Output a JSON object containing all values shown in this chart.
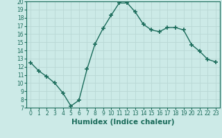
{
  "x": [
    0,
    1,
    2,
    3,
    4,
    5,
    6,
    7,
    8,
    9,
    10,
    11,
    12,
    13,
    14,
    15,
    16,
    17,
    18,
    19,
    20,
    21,
    22,
    23
  ],
  "y": [
    12.5,
    11.5,
    10.8,
    10.0,
    8.8,
    7.2,
    7.9,
    11.7,
    14.8,
    16.7,
    18.3,
    19.8,
    19.8,
    18.7,
    17.2,
    16.5,
    16.3,
    16.8,
    16.8,
    16.5,
    14.7,
    13.9,
    12.9,
    12.6
  ],
  "line_color": "#1a6b5a",
  "marker": "+",
  "marker_size": 4,
  "bg_color": "#cceae7",
  "grid_color": "#b8d8d5",
  "xlabel": "Humidex (Indice chaleur)",
  "xlim": [
    -0.5,
    23.5
  ],
  "ylim": [
    7,
    20
  ],
  "yticks": [
    7,
    8,
    9,
    10,
    11,
    12,
    13,
    14,
    15,
    16,
    17,
    18,
    19,
    20
  ],
  "xticks": [
    0,
    1,
    2,
    3,
    4,
    5,
    6,
    7,
    8,
    9,
    10,
    11,
    12,
    13,
    14,
    15,
    16,
    17,
    18,
    19,
    20,
    21,
    22,
    23
  ],
  "tick_label_fontsize": 5.5,
  "xlabel_fontsize": 7.5
}
